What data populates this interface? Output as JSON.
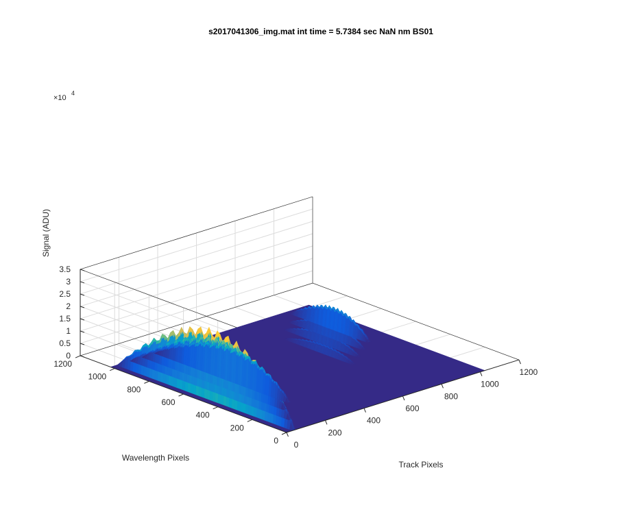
{
  "chart_data": {
    "type": "surface",
    "title": "s2017041306_img.mat int time = 5.7384 sec  NaN nm BS01",
    "xlabel": "Track Pixels",
    "ylabel": "Wavelength Pixels",
    "zlabel": "Signal (ADU)",
    "z_exponent": "×10",
    "z_exponent_power": "4",
    "xlim": [
      0,
      1200
    ],
    "ylim": [
      0,
      1200
    ],
    "zlim": [
      0,
      35000
    ],
    "x_ticks": [
      "0",
      "200",
      "400",
      "600",
      "800",
      "1000",
      "1200"
    ],
    "y_ticks": [
      "0",
      "200",
      "400",
      "600",
      "800",
      "1000",
      "1200"
    ],
    "z_ticks": [
      "0",
      "0.5",
      "1",
      "1.5",
      "2",
      "2.5",
      "3",
      "3.5"
    ],
    "grid": true,
    "colormap": "parula",
    "colormap_stops": [
      "#352a87",
      "#0f5cdd",
      "#1481d6",
      "#06a4ca",
      "#2eb7a4",
      "#87bf77",
      "#d1bb59",
      "#fec832",
      "#f9fb0e"
    ],
    "surface_x_range": [
      0,
      1024
    ],
    "surface_y_range": [
      0,
      1024
    ],
    "tracks": [
      {
        "track_center": 40,
        "track_width": 20,
        "peak_signal": 29000,
        "wavelength_span": [
          0,
          1024
        ]
      },
      {
        "track_center": 110,
        "track_width": 20,
        "peak_signal": 21000,
        "wavelength_span": [
          100,
          1024
        ]
      },
      {
        "track_center": 170,
        "track_width": 18,
        "peak_signal": 19000,
        "wavelength_span": [
          200,
          1024
        ]
      },
      {
        "track_center": 235,
        "track_width": 18,
        "peak_signal": 14000,
        "wavelength_span": [
          250,
          1024
        ]
      },
      {
        "track_center": 705,
        "track_width": 18,
        "peak_signal": 3500,
        "wavelength_span": [
          400,
          800
        ]
      },
      {
        "track_center": 775,
        "track_width": 18,
        "peak_signal": 4800,
        "wavelength_span": [
          450,
          880
        ]
      },
      {
        "track_center": 845,
        "track_width": 20,
        "peak_signal": 6000,
        "wavelength_span": [
          500,
          930
        ]
      },
      {
        "track_center": 915,
        "track_width": 22,
        "peak_signal": 9000,
        "wavelength_span": [
          550,
          1000
        ]
      }
    ]
  }
}
